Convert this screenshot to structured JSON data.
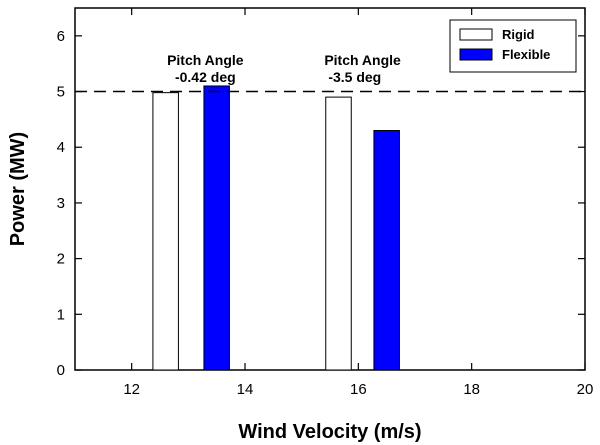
{
  "chart_data": {
    "type": "bar",
    "title": "",
    "xlabel": "Wind Velocity (m/s)",
    "ylabel": "Power (MW)",
    "xlim": [
      11,
      20
    ],
    "ylim": [
      0,
      6.5
    ],
    "xticks": [
      12,
      14,
      16,
      18,
      20
    ],
    "yticks": [
      0,
      1,
      2,
      3,
      4,
      5,
      6
    ],
    "bar_width": 0.45,
    "reference_line": {
      "y": 5,
      "style": "dashed"
    },
    "grid": false,
    "legend_position": "top-right",
    "series": [
      {
        "name": "Rigid",
        "color": "#ffffff",
        "bars": [
          {
            "x": 12.6,
            "value": 4.98
          },
          {
            "x": 15.65,
            "value": 4.9
          }
        ]
      },
      {
        "name": "Flexible",
        "color": "#0000ff",
        "bars": [
          {
            "x": 13.5,
            "value": 5.1
          },
          {
            "x": 16.5,
            "value": 4.3
          }
        ]
      }
    ],
    "annotations": [
      {
        "lines": [
          "Pitch Angle",
          "-0.42 deg"
        ],
        "x": 13.3,
        "y": 5.8,
        "align": "center"
      },
      {
        "lines": [
          "Pitch Angle",
          "-3.5 deg"
        ],
        "x": 15.4,
        "y": 5.8,
        "align": "left"
      }
    ]
  }
}
